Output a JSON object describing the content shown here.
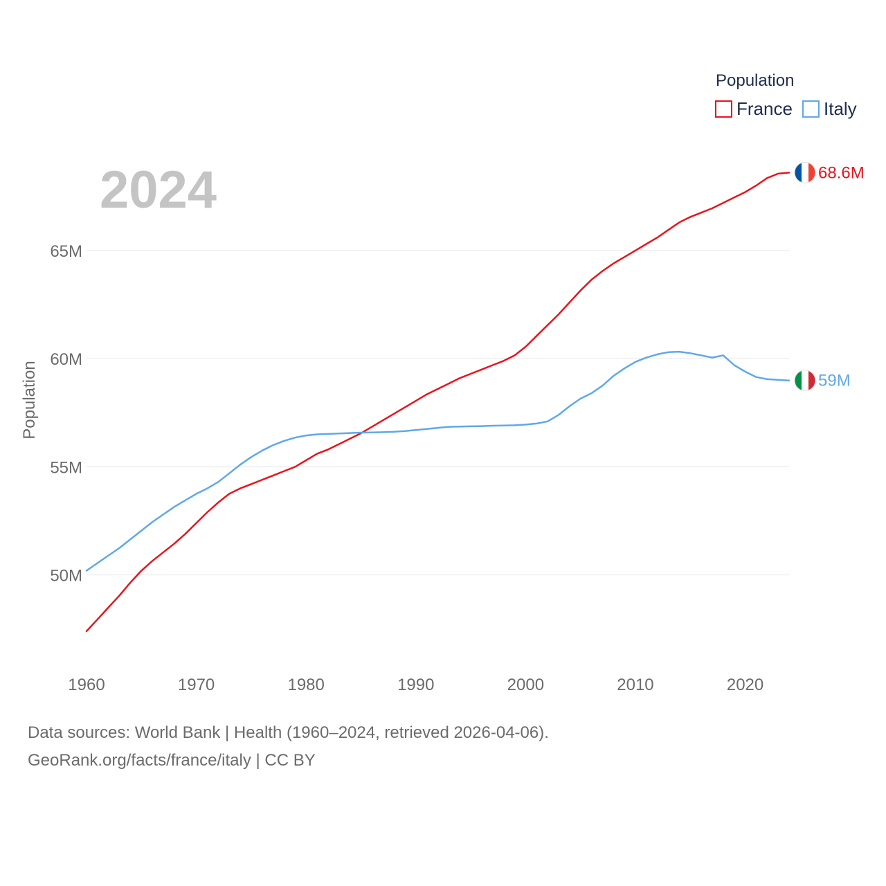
{
  "chart_data": {
    "type": "line",
    "title": "Population",
    "ylabel": "Population",
    "xlabel": "",
    "current_year": "2024",
    "xlim": [
      1960,
      2024
    ],
    "ylim": [
      46500000,
      70500000
    ],
    "x_ticks": [
      1960,
      1970,
      1980,
      1990,
      2000,
      2010,
      2020
    ],
    "y_ticks": [
      50000000,
      55000000,
      60000000,
      65000000
    ],
    "y_tick_labels": [
      "50M",
      "55M",
      "60M",
      "65M"
    ],
    "x": [
      1960,
      1961,
      1962,
      1963,
      1964,
      1965,
      1966,
      1967,
      1968,
      1969,
      1970,
      1971,
      1972,
      1973,
      1974,
      1975,
      1976,
      1977,
      1978,
      1979,
      1980,
      1981,
      1982,
      1983,
      1984,
      1985,
      1986,
      1987,
      1988,
      1989,
      1990,
      1991,
      1992,
      1993,
      1994,
      1995,
      1996,
      1997,
      1998,
      1999,
      2000,
      2001,
      2002,
      2003,
      2004,
      2005,
      2006,
      2007,
      2008,
      2009,
      2010,
      2011,
      2012,
      2013,
      2014,
      2015,
      2016,
      2017,
      2018,
      2019,
      2020,
      2021,
      2022,
      2023,
      2024
    ],
    "series": [
      {
        "name": "France",
        "color": "#e8141c",
        "flag": "france-flag",
        "end_label": "68.6M",
        "values": [
          47400000,
          47950000,
          48500000,
          49050000,
          49650000,
          50200000,
          50650000,
          51050000,
          51450000,
          51900000,
          52400000,
          52900000,
          53350000,
          53750000,
          54000000,
          54200000,
          54400000,
          54600000,
          54800000,
          55000000,
          55300000,
          55600000,
          55800000,
          56050000,
          56300000,
          56550000,
          56850000,
          57150000,
          57450000,
          57750000,
          58050000,
          58350000,
          58600000,
          58850000,
          59100000,
          59300000,
          59500000,
          59700000,
          59900000,
          60150000,
          60550000,
          61050000,
          61550000,
          62050000,
          62600000,
          63150000,
          63650000,
          64050000,
          64400000,
          64700000,
          65000000,
          65300000,
          65600000,
          65950000,
          66300000,
          66550000,
          66750000,
          66950000,
          67200000,
          67450000,
          67700000,
          68000000,
          68350000,
          68550000,
          68600000
        ]
      },
      {
        "name": "Italy",
        "color": "#5fa8e8",
        "flag": "italy-flag",
        "end_label": "59M",
        "values": [
          50200000,
          50550000,
          50900000,
          51250000,
          51650000,
          52050000,
          52450000,
          52800000,
          53150000,
          53450000,
          53750000,
          54000000,
          54300000,
          54700000,
          55100000,
          55450000,
          55750000,
          56000000,
          56200000,
          56350000,
          56450000,
          56500000,
          56520000,
          56540000,
          56560000,
          56580000,
          56590000,
          56600000,
          56620000,
          56650000,
          56700000,
          56750000,
          56800000,
          56850000,
          56860000,
          56870000,
          56880000,
          56900000,
          56910000,
          56920000,
          56950000,
          57000000,
          57100000,
          57400000,
          57800000,
          58150000,
          58400000,
          58750000,
          59200000,
          59550000,
          59850000,
          60050000,
          60200000,
          60300000,
          60320000,
          60250000,
          60150000,
          60050000,
          60150000,
          59700000,
          59400000,
          59150000,
          59050000,
          59020000,
          58990000
        ]
      }
    ]
  },
  "legend": {
    "title": "Population",
    "items": [
      "France",
      "Italy"
    ]
  },
  "footer": {
    "line1": "Data sources: World Bank | Health (1960–2024, retrieved 2026-04-06).",
    "line2": "GeoRank.org/facts/france/italy | CC BY"
  }
}
